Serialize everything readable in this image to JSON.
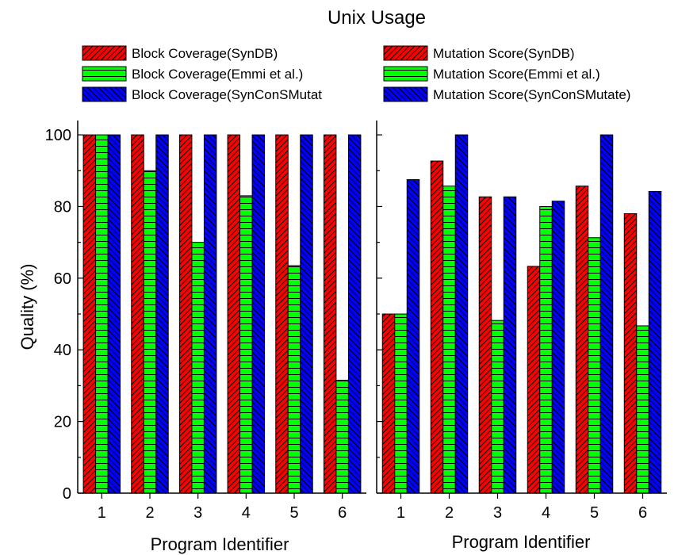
{
  "title": "Unix Usage",
  "colors": {
    "synDB": "#ff0000",
    "emmi": "#00ff00",
    "syncons": "#0000ff"
  },
  "chart_data": [
    {
      "type": "bar",
      "categories": [
        "1",
        "2",
        "3",
        "4",
        "5",
        "6"
      ],
      "xlabel": "Program Identifier",
      "ylabel": "Quality (%)",
      "ylim": [
        0,
        104
      ],
      "yticks": [
        "0",
        "20",
        "40",
        "60",
        "80",
        "100"
      ],
      "series": [
        {
          "name": "Block Coverage(SynDB)",
          "values": [
            100,
            100,
            100,
            100,
            100,
            100
          ],
          "pattern": "diagonal-right"
        },
        {
          "name": "Block Coverage(Emmi et al.)",
          "values": [
            100,
            90,
            70,
            83,
            63.5,
            31.5
          ],
          "pattern": "horizontal"
        },
        {
          "name": "Block Coverage(SynConSMutat",
          "values": [
            100,
            100,
            100,
            100,
            100,
            100
          ],
          "pattern": "diagonal-left"
        }
      ]
    },
    {
      "type": "bar",
      "categories": [
        "1",
        "2",
        "3",
        "4",
        "5",
        "6"
      ],
      "xlabel": "Program Identifier",
      "ylabel": "",
      "ylim": [
        0,
        104
      ],
      "series": [
        {
          "name": "Mutation Score(SynDB)",
          "values": [
            50,
            92.7,
            82.7,
            63.3,
            85.7,
            78
          ],
          "pattern": "diagonal-right"
        },
        {
          "name": "Mutation Score(Emmi et al.)",
          "values": [
            50,
            85.7,
            48.2,
            80,
            71.3,
            46.7
          ],
          "pattern": "horizontal"
        },
        {
          "name": "Mutation Score(SynConSMutate)",
          "values": [
            87.5,
            100,
            82.7,
            81.5,
            100,
            84.2
          ],
          "pattern": "diagonal-left"
        }
      ]
    }
  ]
}
